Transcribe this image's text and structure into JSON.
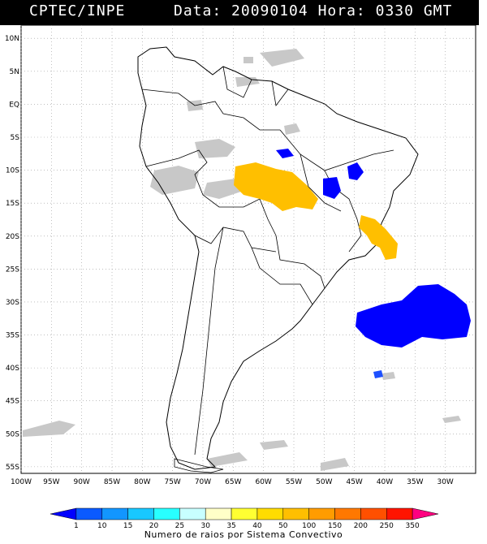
{
  "header": {
    "source": "CPTEC/INPE",
    "date_label": "Data:",
    "date": "20090104",
    "hour_label": "Hora:",
    "hour": "0330",
    "tz": "GMT"
  },
  "map": {
    "lat_labels": [
      "10N",
      "5N",
      "EQ",
      "5S",
      "10S",
      "15S",
      "20S",
      "25S",
      "30S",
      "35S",
      "40S",
      "45S",
      "50S",
      "55S"
    ],
    "lon_labels": [
      "100W",
      "95W",
      "90W",
      "85W",
      "80W",
      "75W",
      "70W",
      "65W",
      "60W",
      "55W",
      "50W",
      "45W",
      "40W",
      "35W",
      "30W"
    ],
    "lat_range": [
      -56,
      12
    ],
    "lon_range": [
      -100,
      -25
    ],
    "systems": [
      {
        "name": "amazon-cluster",
        "level": "50-100",
        "color": "#ffbf00"
      },
      {
        "name": "bahia-cluster",
        "level": "50-100",
        "color": "#ffbf00"
      },
      {
        "name": "atlantic-cluster",
        "level": "1-10",
        "color": "#0000ff"
      },
      {
        "name": "goias-cluster",
        "level": "1-10",
        "color": "#0000ff"
      },
      {
        "name": "piaui-cluster",
        "level": "1-10",
        "color": "#0000ff"
      }
    ]
  },
  "colorbar": {
    "ticks": [
      "1",
      "10",
      "15",
      "20",
      "25",
      "30",
      "35",
      "40",
      "50",
      "100",
      "150",
      "200",
      "250",
      "350"
    ],
    "colors": [
      "#0000ff",
      "#0a5aff",
      "#1296ff",
      "#18c8ff",
      "#28ffff",
      "#c8ffff",
      "#ffffc8",
      "#ffff32",
      "#ffdc00",
      "#ffbf00",
      "#ff9c00",
      "#ff7800",
      "#ff5000",
      "#ff1400",
      "#ff0080"
    ],
    "caption": "Numero de raios por Sistema Convectivo"
  }
}
